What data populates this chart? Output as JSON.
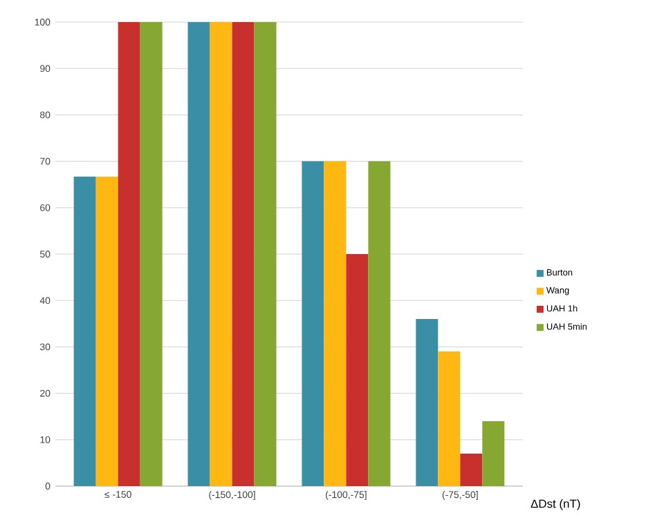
{
  "chart_data": {
    "type": "bar",
    "xlabel": "ΔDst (nT)",
    "categories": [
      "≤ -150",
      "(-150,-100]",
      "(-100,-75]",
      "(-75,-50]"
    ],
    "series": [
      {
        "name": "Burton",
        "color": "#3a8fa6",
        "values": [
          66.7,
          100,
          70,
          36
        ]
      },
      {
        "name": "Wang",
        "color": "#ffb812",
        "values": [
          66.7,
          100,
          70,
          29
        ]
      },
      {
        "name": "UAH 1h",
        "color": "#c8302e",
        "values": [
          100,
          100,
          50,
          7
        ]
      },
      {
        "name": "UAH 5min",
        "color": "#86a833",
        "values": [
          100,
          100,
          70,
          14
        ]
      }
    ],
    "ylim": [
      0,
      100
    ],
    "yticks": [
      0,
      10,
      20,
      30,
      40,
      50,
      60,
      70,
      80,
      90,
      100
    ],
    "grid": "y",
    "legend": "right"
  }
}
